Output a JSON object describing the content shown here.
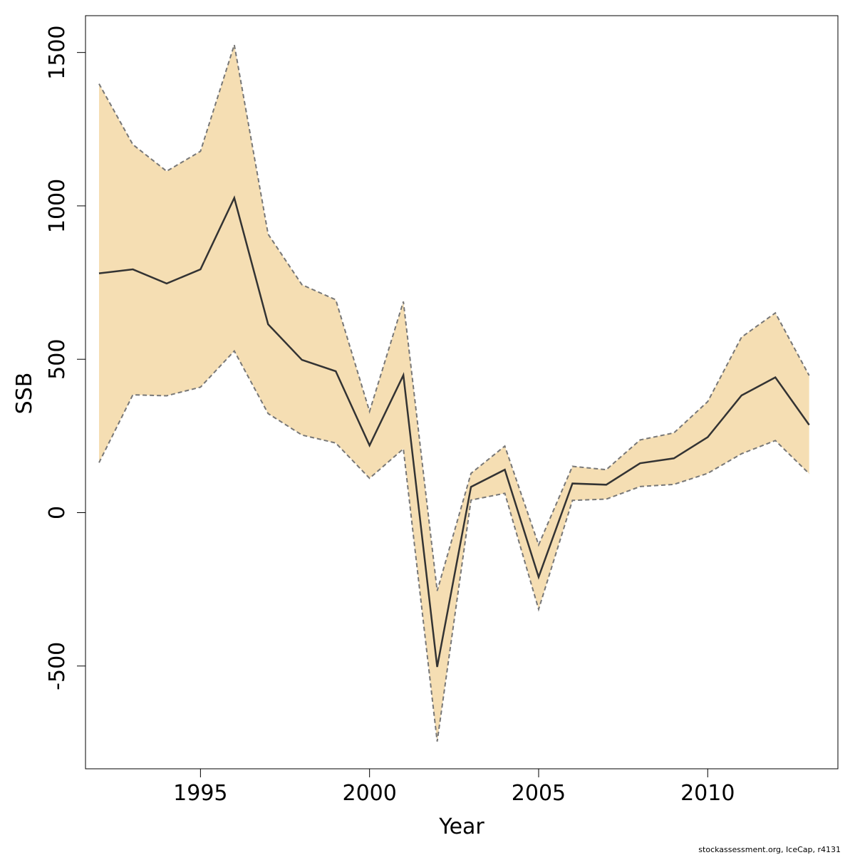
{
  "chart_data": {
    "type": "area",
    "title": "",
    "xlabel": "Year",
    "ylabel": "SSB",
    "xlim": [
      1991.6,
      2013.85
    ],
    "ylim": [
      -835,
      1620
    ],
    "x_ticks": [
      1995,
      2000,
      2005,
      2010
    ],
    "y_ticks": [
      -500,
      0,
      500,
      1000,
      1500
    ],
    "grid": false,
    "legend": "none",
    "band_color": "#F5DEB3",
    "bound_line_color": "#777777",
    "estimate_line_color": "#333333",
    "x": [
      1992,
      1993,
      1994,
      1995,
      1996,
      1997,
      1998,
      1999,
      2000,
      2001,
      2002,
      2003,
      2004,
      2005,
      2006,
      2007,
      2008,
      2009,
      2010,
      2011,
      2012,
      2013
    ],
    "series": [
      {
        "role": "upper",
        "values": [
          1398,
          1200,
          1113,
          1178,
          1525,
          908,
          743,
          694,
          330,
          688,
          -255,
          128,
          217,
          -105,
          151,
          140,
          237,
          260,
          362,
          572,
          651,
          447
        ]
      },
      {
        "role": "estimate",
        "values": [
          780,
          793,
          747,
          793,
          1026,
          614,
          498,
          461,
          219,
          448,
          -503,
          84,
          140,
          -210,
          95,
          91,
          161,
          177,
          246,
          382,
          441,
          286
        ]
      },
      {
        "role": "lower",
        "values": [
          163,
          384,
          381,
          409,
          527,
          323,
          253,
          227,
          112,
          208,
          -746,
          41,
          63,
          -315,
          40,
          44,
          85,
          92,
          128,
          192,
          235,
          127
        ]
      }
    ]
  },
  "credit": "stockassessment.org, IceCap, r4131"
}
